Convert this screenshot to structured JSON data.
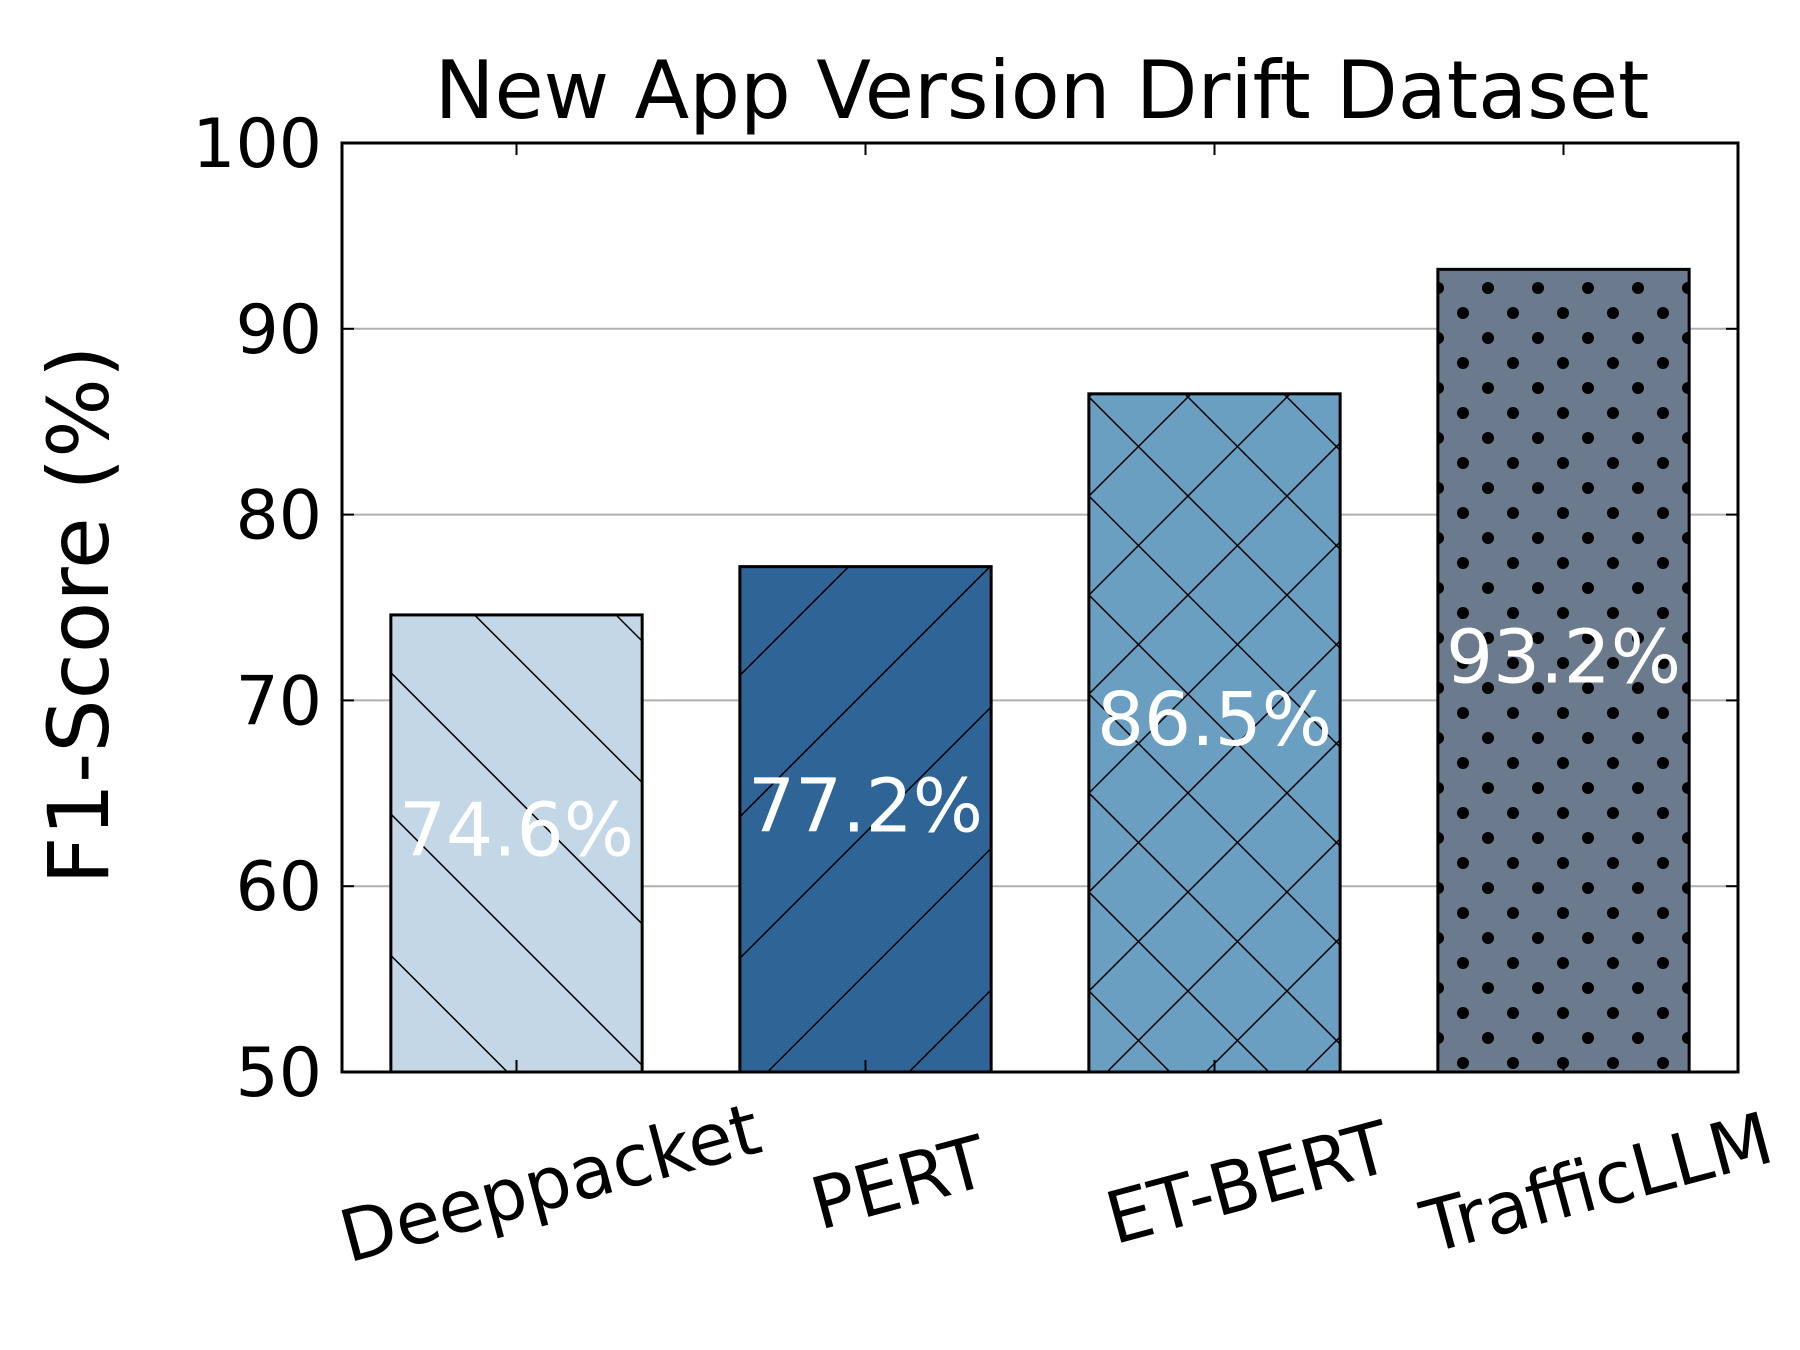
{
  "chart_data": {
    "type": "bar",
    "title": "New App Version Drift Dataset",
    "xlabel": "",
    "ylabel": "F1-Score (%)",
    "ylim": [
      50,
      100
    ],
    "yticks": [
      50,
      60,
      70,
      80,
      90,
      100
    ],
    "grid": true,
    "categories": [
      "Deeppacket",
      "PERT",
      "ET-BERT",
      "TrafficLLM"
    ],
    "values": [
      74.6,
      77.2,
      86.5,
      93.2
    ],
    "data_labels": [
      "74.6%",
      "77.2%",
      "86.5%",
      "93.2%"
    ],
    "colors": [
      "#c4d7e7",
      "#2f6496",
      "#6b9fc2",
      "#6b7a8c"
    ],
    "hatches": [
      "backslash",
      "slash",
      "cross",
      "dots"
    ]
  }
}
